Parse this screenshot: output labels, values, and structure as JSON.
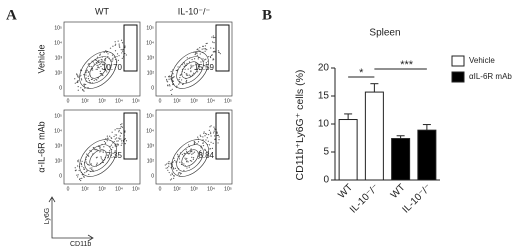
{
  "panel_a": {
    "letter": "A",
    "columns": [
      "WT",
      "IL-10⁻/⁻"
    ],
    "rows": [
      "Vehicle",
      "α-IL-6R mAb"
    ],
    "gates": [
      [
        "10.70",
        "15.59"
      ],
      [
        "7.35",
        "8.84"
      ]
    ],
    "y_ticks": [
      "10⁵",
      "10⁴",
      "10³",
      "10²",
      "0"
    ],
    "x_ticks": [
      "0",
      "10²",
      "10³",
      "10⁴",
      "10⁵"
    ],
    "y_axis": "Ly6G",
    "x_axis": "CD11b"
  },
  "chart_data": {
    "type": "bar",
    "letter": "B",
    "title": "Spleen",
    "y_label": "CD11b⁺Ly6G⁺ cells (%)",
    "categories": [
      "WT",
      "IL-10⁻/⁻",
      "WT",
      "IL-10⁻/⁻"
    ],
    "series": [
      {
        "name": "Vehicle",
        "color": "#ffffff",
        "values": [
          10.8,
          15.7,
          null,
          null
        ],
        "errors": [
          1.0,
          1.5,
          null,
          null
        ]
      },
      {
        "name": "αIL-6R mAb",
        "color": "#000000",
        "values": [
          null,
          null,
          7.4,
          8.9
        ],
        "errors": [
          null,
          null,
          0.5,
          1.0
        ]
      }
    ],
    "ylim": [
      0,
      20
    ],
    "yticks": [
      0,
      5,
      10,
      15,
      20
    ],
    "annotations": [
      "*",
      "***"
    ]
  }
}
